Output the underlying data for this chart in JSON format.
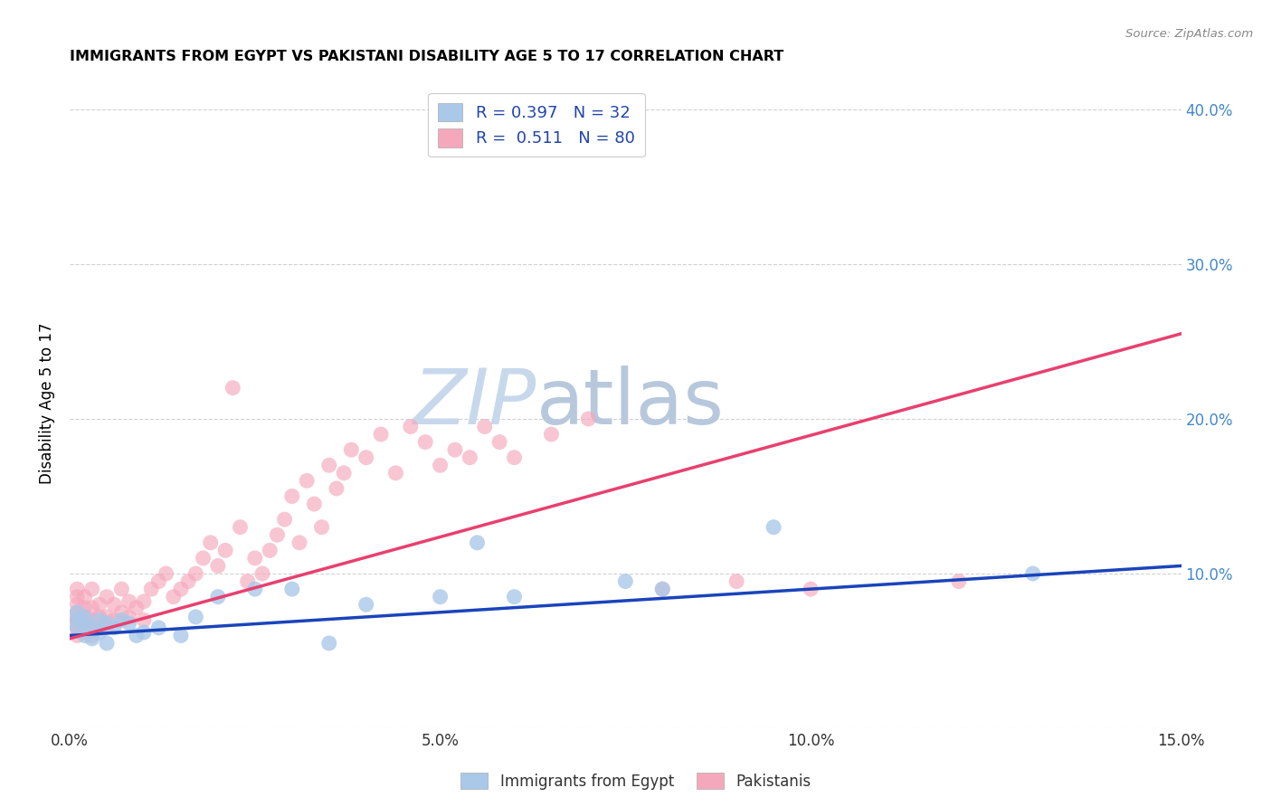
{
  "title": "IMMIGRANTS FROM EGYPT VS PAKISTANI DISABILITY AGE 5 TO 17 CORRELATION CHART",
  "source": "Source: ZipAtlas.com",
  "ylabel": "Disability Age 5 to 17",
  "xticklabels": [
    "0.0%",
    "5.0%",
    "10.0%",
    "15.0%"
  ],
  "yticklabels_right": [
    "40.0%",
    "30.0%",
    "20.0%",
    "10.0%"
  ],
  "xlim": [
    0.0,
    0.15
  ],
  "ylim": [
    0.0,
    0.42
  ],
  "legend_labels": [
    "Immigrants from Egypt",
    "Pakistanis"
  ],
  "R_egypt": 0.397,
  "N_egypt": 32,
  "R_pakistan": 0.511,
  "N_pakistan": 80,
  "color_egypt": "#aac8e8",
  "color_pakistan": "#f5a8bc",
  "line_color_egypt": "#1a44bb",
  "line_color_pakistan": "#e84070",
  "watermark_zip": "ZIP",
  "watermark_atlas": "atlas",
  "watermark_color_zip": "#c8d8ec",
  "watermark_color_atlas": "#b8c8dc",
  "egypt_x": [
    0.001,
    0.001,
    0.001,
    0.002,
    0.002,
    0.002,
    0.003,
    0.003,
    0.004,
    0.004,
    0.005,
    0.005,
    0.006,
    0.007,
    0.008,
    0.009,
    0.01,
    0.012,
    0.015,
    0.017,
    0.02,
    0.025,
    0.03,
    0.035,
    0.04,
    0.05,
    0.055,
    0.06,
    0.075,
    0.08,
    0.095,
    0.13
  ],
  "egypt_y": [
    0.065,
    0.07,
    0.075,
    0.06,
    0.068,
    0.072,
    0.058,
    0.065,
    0.062,
    0.07,
    0.055,
    0.068,
    0.065,
    0.07,
    0.068,
    0.06,
    0.062,
    0.065,
    0.06,
    0.072,
    0.085,
    0.09,
    0.09,
    0.055,
    0.08,
    0.085,
    0.12,
    0.085,
    0.095,
    0.09,
    0.13,
    0.1
  ],
  "pakistan_x": [
    0.001,
    0.001,
    0.001,
    0.001,
    0.001,
    0.001,
    0.001,
    0.001,
    0.001,
    0.002,
    0.002,
    0.002,
    0.002,
    0.002,
    0.002,
    0.003,
    0.003,
    0.003,
    0.003,
    0.003,
    0.004,
    0.004,
    0.004,
    0.005,
    0.005,
    0.005,
    0.006,
    0.006,
    0.007,
    0.007,
    0.008,
    0.008,
    0.009,
    0.01,
    0.01,
    0.011,
    0.012,
    0.013,
    0.014,
    0.015,
    0.016,
    0.017,
    0.018,
    0.019,
    0.02,
    0.021,
    0.022,
    0.023,
    0.024,
    0.025,
    0.026,
    0.027,
    0.028,
    0.029,
    0.03,
    0.031,
    0.032,
    0.033,
    0.034,
    0.035,
    0.036,
    0.037,
    0.038,
    0.04,
    0.042,
    0.044,
    0.046,
    0.048,
    0.05,
    0.052,
    0.054,
    0.056,
    0.058,
    0.06,
    0.065,
    0.07,
    0.08,
    0.09,
    0.1,
    0.12
  ],
  "pakistan_y": [
    0.06,
    0.065,
    0.068,
    0.07,
    0.072,
    0.075,
    0.08,
    0.085,
    0.09,
    0.062,
    0.065,
    0.068,
    0.072,
    0.078,
    0.085,
    0.06,
    0.065,
    0.07,
    0.078,
    0.09,
    0.065,
    0.072,
    0.08,
    0.065,
    0.072,
    0.085,
    0.07,
    0.08,
    0.075,
    0.09,
    0.072,
    0.082,
    0.078,
    0.07,
    0.082,
    0.09,
    0.095,
    0.1,
    0.085,
    0.09,
    0.095,
    0.1,
    0.11,
    0.12,
    0.105,
    0.115,
    0.22,
    0.13,
    0.095,
    0.11,
    0.1,
    0.115,
    0.125,
    0.135,
    0.15,
    0.12,
    0.16,
    0.145,
    0.13,
    0.17,
    0.155,
    0.165,
    0.18,
    0.175,
    0.19,
    0.165,
    0.195,
    0.185,
    0.17,
    0.18,
    0.175,
    0.195,
    0.185,
    0.175,
    0.19,
    0.2,
    0.09,
    0.095,
    0.09,
    0.095
  ],
  "blue_line_x": [
    0.0,
    0.15
  ],
  "blue_line_y": [
    0.06,
    0.105
  ],
  "pink_line_x": [
    0.0,
    0.15
  ],
  "pink_line_y": [
    0.058,
    0.255
  ]
}
